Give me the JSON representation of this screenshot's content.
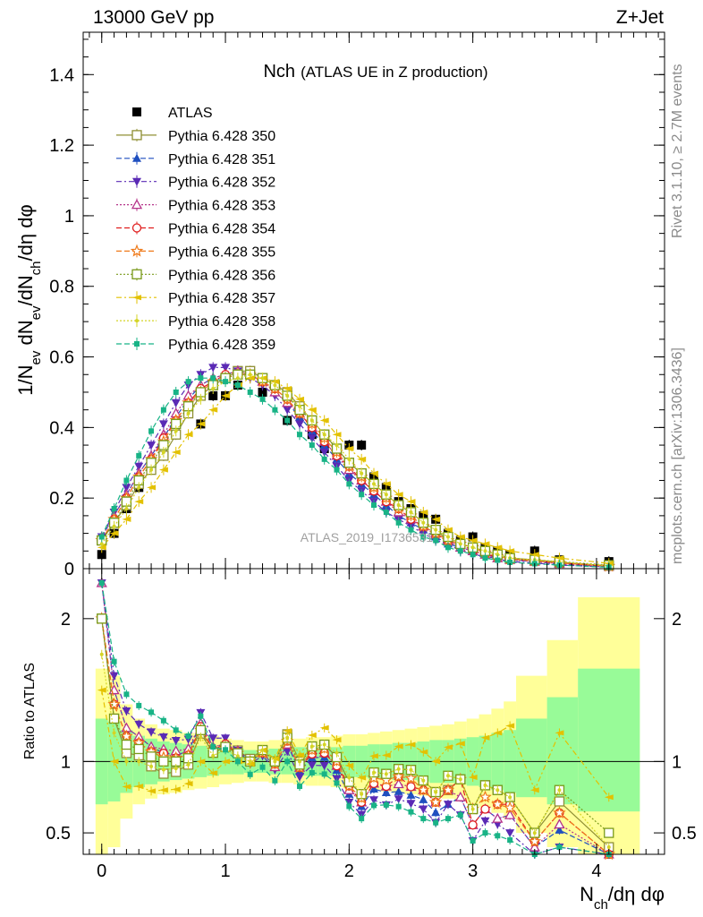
{
  "header": {
    "left": "13000 GeV pp",
    "right": "Z+Jet"
  },
  "side_notes": {
    "rivet": "Rivet 3.1.10, ≥ 2.7M events",
    "mcplots": "mcplots.cern.ch [arXiv:1306.3436]"
  },
  "watermark": "ATLAS_2019_I1736531",
  "colors": {
    "ratio_band_inner": "#98fb98",
    "ratio_band_outer": "#ffff99",
    "unity_line": "#000000"
  },
  "chart_data": [
    {
      "type": "scatter",
      "title": "Nch",
      "subtitle": "(ATLAS UE in Z production)",
      "xlabel": "N_ch/dη dφ",
      "ylabel": "1/N_ev dN_ev/dN_ch/dη dφ",
      "xlim": [
        -0.15,
        4.55
      ],
      "ylim": [
        0,
        1.52
      ],
      "x_ticks": [
        "0",
        "1",
        "2",
        "3",
        "4"
      ],
      "y_ticks": [
        "0",
        "0.2",
        "0.4",
        "0.6",
        "0.8",
        "1",
        "1.2",
        "1.4"
      ],
      "grid": false,
      "legend_position": "top-left",
      "x": [
        0.0,
        0.1,
        0.2,
        0.3,
        0.4,
        0.5,
        0.6,
        0.7,
        0.8,
        0.9,
        1.0,
        1.1,
        1.2,
        1.3,
        1.4,
        1.5,
        1.6,
        1.7,
        1.8,
        1.9,
        2.0,
        2.1,
        2.2,
        2.3,
        2.4,
        2.5,
        2.6,
        2.7,
        2.8,
        2.9,
        3.0,
        3.1,
        3.2,
        3.3,
        3.5,
        3.7,
        4.1
      ],
      "series": [
        {
          "name": "ATLAS",
          "color": "#000000",
          "marker": "filled-square",
          "dash": "none",
          "values": [
            0.04,
            0.1,
            0.17,
            0.23,
            0.29,
            0.35,
            0.41,
            0.45,
            0.41,
            0.49,
            0.49,
            0.52,
            0.55,
            0.5,
            0.52,
            0.42,
            0.46,
            0.38,
            0.34,
            0.33,
            0.35,
            0.35,
            0.26,
            0.23,
            0.19,
            0.17,
            0.15,
            0.14,
            0.1,
            0.08,
            0.09,
            0.06,
            0.05,
            0.04,
            0.05,
            0.025,
            0.02
          ]
        },
        {
          "name": "Pythia 6.428 350",
          "color": "#8f8f34",
          "marker": "open-square",
          "dash": "solid",
          "values": [
            0.08,
            0.13,
            0.18,
            0.24,
            0.28,
            0.32,
            0.38,
            0.44,
            0.49,
            0.52,
            0.54,
            0.56,
            0.56,
            0.54,
            0.52,
            0.5,
            0.46,
            0.42,
            0.38,
            0.34,
            0.3,
            0.27,
            0.24,
            0.21,
            0.18,
            0.16,
            0.13,
            0.11,
            0.08,
            0.07,
            0.06,
            0.05,
            0.04,
            0.03,
            0.025,
            0.018,
            0.008
          ]
        },
        {
          "name": "Pythia 6.428 351",
          "color": "#1f4fbf",
          "marker": "filled-triangle-up",
          "dash": "dashed",
          "values": [
            0.09,
            0.15,
            0.21,
            0.27,
            0.32,
            0.37,
            0.43,
            0.48,
            0.52,
            0.54,
            0.55,
            0.56,
            0.55,
            0.53,
            0.5,
            0.47,
            0.43,
            0.39,
            0.35,
            0.31,
            0.27,
            0.24,
            0.21,
            0.18,
            0.15,
            0.13,
            0.11,
            0.09,
            0.07,
            0.06,
            0.05,
            0.04,
            0.03,
            0.025,
            0.02,
            0.013,
            0.006
          ]
        },
        {
          "name": "Pythia 6.428 352",
          "color": "#5a2ab5",
          "marker": "filled-triangle-down",
          "dash": "dashdot",
          "values": [
            0.09,
            0.16,
            0.23,
            0.29,
            0.35,
            0.41,
            0.47,
            0.52,
            0.55,
            0.57,
            0.57,
            0.56,
            0.54,
            0.52,
            0.49,
            0.45,
            0.41,
            0.37,
            0.33,
            0.29,
            0.25,
            0.22,
            0.19,
            0.16,
            0.14,
            0.12,
            0.1,
            0.08,
            0.07,
            0.05,
            0.04,
            0.035,
            0.028,
            0.02,
            0.016,
            0.01,
            0.005
          ]
        },
        {
          "name": "Pythia 6.428 353",
          "color": "#b5338a",
          "marker": "open-triangle-up",
          "dash": "dotted",
          "values": [
            0.09,
            0.15,
            0.21,
            0.27,
            0.32,
            0.38,
            0.44,
            0.49,
            0.52,
            0.54,
            0.55,
            0.56,
            0.55,
            0.53,
            0.5,
            0.47,
            0.44,
            0.4,
            0.36,
            0.32,
            0.28,
            0.25,
            0.22,
            0.19,
            0.16,
            0.14,
            0.12,
            0.1,
            0.08,
            0.06,
            0.05,
            0.04,
            0.03,
            0.025,
            0.02,
            0.014,
            0.006
          ]
        },
        {
          "name": "Pythia 6.428 354",
          "color": "#e01e1e",
          "marker": "open-circle",
          "dash": "dashed",
          "values": [
            0.08,
            0.14,
            0.2,
            0.26,
            0.31,
            0.37,
            0.42,
            0.47,
            0.51,
            0.53,
            0.55,
            0.55,
            0.55,
            0.53,
            0.51,
            0.48,
            0.44,
            0.4,
            0.36,
            0.32,
            0.29,
            0.25,
            0.22,
            0.19,
            0.17,
            0.14,
            0.12,
            0.1,
            0.08,
            0.07,
            0.05,
            0.04,
            0.035,
            0.028,
            0.022,
            0.016,
            0.007
          ]
        },
        {
          "name": "Pythia 6.428 355",
          "color": "#ef7a1a",
          "marker": "open-star",
          "dash": "dashed",
          "values": [
            0.08,
            0.14,
            0.2,
            0.26,
            0.31,
            0.36,
            0.42,
            0.47,
            0.5,
            0.53,
            0.54,
            0.55,
            0.55,
            0.53,
            0.51,
            0.48,
            0.44,
            0.41,
            0.37,
            0.33,
            0.29,
            0.26,
            0.23,
            0.2,
            0.17,
            0.15,
            0.12,
            0.1,
            0.08,
            0.07,
            0.06,
            0.045,
            0.035,
            0.027,
            0.022,
            0.016,
            0.007
          ]
        },
        {
          "name": "Pythia 6.428 356",
          "color": "#7a9a1a",
          "marker": "open-square",
          "dash": "dotted",
          "values": [
            0.08,
            0.13,
            0.19,
            0.25,
            0.3,
            0.35,
            0.41,
            0.46,
            0.5,
            0.52,
            0.54,
            0.55,
            0.55,
            0.54,
            0.52,
            0.49,
            0.45,
            0.42,
            0.38,
            0.34,
            0.3,
            0.27,
            0.24,
            0.21,
            0.18,
            0.16,
            0.13,
            0.11,
            0.09,
            0.07,
            0.06,
            0.05,
            0.04,
            0.03,
            0.025,
            0.02,
            0.01
          ]
        },
        {
          "name": "Pythia 6.428 357",
          "color": "#e3c100",
          "marker": "filled-triangle-left",
          "dash": "dashdot",
          "values": [
            0.06,
            0.1,
            0.14,
            0.19,
            0.23,
            0.28,
            0.33,
            0.38,
            0.41,
            0.45,
            0.49,
            0.52,
            0.54,
            0.54,
            0.53,
            0.51,
            0.48,
            0.45,
            0.42,
            0.38,
            0.34,
            0.31,
            0.27,
            0.24,
            0.21,
            0.19,
            0.16,
            0.14,
            0.11,
            0.09,
            0.08,
            0.07,
            0.06,
            0.05,
            0.04,
            0.03,
            0.015
          ]
        },
        {
          "name": "Pythia 6.428 358",
          "color": "#d4d425",
          "marker": "dot",
          "dash": "dotted",
          "values": [
            0.07,
            0.12,
            0.17,
            0.23,
            0.28,
            0.33,
            0.39,
            0.44,
            0.48,
            0.51,
            0.53,
            0.54,
            0.55,
            0.54,
            0.52,
            0.49,
            0.46,
            0.42,
            0.38,
            0.35,
            0.31,
            0.27,
            0.24,
            0.21,
            0.18,
            0.16,
            0.13,
            0.11,
            0.09,
            0.07,
            0.06,
            0.05,
            0.04,
            0.03,
            0.025,
            0.02,
            0.008
          ]
        },
        {
          "name": "Pythia 6.428 359",
          "color": "#18b386",
          "marker": "filled-square-small",
          "dash": "dashed",
          "values": [
            0.09,
            0.17,
            0.25,
            0.32,
            0.39,
            0.45,
            0.5,
            0.53,
            0.54,
            0.54,
            0.53,
            0.52,
            0.5,
            0.48,
            0.45,
            0.42,
            0.38,
            0.35,
            0.31,
            0.28,
            0.24,
            0.21,
            0.18,
            0.16,
            0.13,
            0.11,
            0.09,
            0.08,
            0.06,
            0.05,
            0.04,
            0.03,
            0.024,
            0.018,
            0.014,
            0.01,
            0.004
          ]
        }
      ]
    },
    {
      "type": "scatter",
      "ylabel": "Ratio to ATLAS",
      "xlabel": "N_ch/dη dφ",
      "xlim": [
        -0.15,
        4.55
      ],
      "ylim": [
        0.35,
        2.35
      ],
      "y_ticks": [
        "0.5",
        "1",
        "2"
      ],
      "x_ticks": [
        "0",
        "1",
        "2",
        "3",
        "4"
      ],
      "reference_line": 1,
      "band_edges": [
        -0.05,
        0.05,
        0.15,
        0.25,
        0.35,
        0.45,
        0.55,
        0.65,
        0.75,
        0.85,
        0.95,
        1.05,
        1.15,
        1.25,
        1.35,
        1.45,
        1.55,
        1.65,
        1.75,
        1.85,
        1.95,
        2.05,
        2.15,
        2.25,
        2.35,
        2.45,
        2.55,
        2.65,
        2.75,
        2.85,
        2.95,
        3.05,
        3.15,
        3.25,
        3.35,
        3.6,
        3.85,
        4.35
      ],
      "band_inner_low": [
        0.7,
        0.72,
        0.78,
        0.82,
        0.84,
        0.86,
        0.87,
        0.88,
        0.89,
        0.9,
        0.91,
        0.91,
        0.92,
        0.92,
        0.91,
        0.91,
        0.9,
        0.9,
        0.9,
        0.9,
        0.89,
        0.89,
        0.88,
        0.88,
        0.87,
        0.87,
        0.86,
        0.85,
        0.85,
        0.84,
        0.83,
        0.82,
        0.8,
        0.78,
        0.75,
        0.7,
        0.65
      ],
      "band_inner_high": [
        1.3,
        1.28,
        1.22,
        1.18,
        1.16,
        1.14,
        1.13,
        1.12,
        1.11,
        1.1,
        1.09,
        1.09,
        1.08,
        1.08,
        1.09,
        1.09,
        1.1,
        1.1,
        1.1,
        1.1,
        1.11,
        1.11,
        1.12,
        1.12,
        1.13,
        1.13,
        1.14,
        1.15,
        1.15,
        1.16,
        1.17,
        1.18,
        1.2,
        1.22,
        1.3,
        1.45,
        1.65
      ],
      "band_outer_low": [
        0.35,
        0.4,
        0.6,
        0.7,
        0.74,
        0.77,
        0.78,
        0.8,
        0.81,
        0.82,
        0.84,
        0.85,
        0.86,
        0.86,
        0.85,
        0.85,
        0.84,
        0.83,
        0.83,
        0.82,
        0.81,
        0.81,
        0.8,
        0.79,
        0.78,
        0.77,
        0.76,
        0.75,
        0.74,
        0.72,
        0.7,
        0.68,
        0.64,
        0.6,
        0.5,
        0.4,
        0.35
      ],
      "band_outer_high": [
        1.65,
        1.6,
        1.4,
        1.3,
        1.26,
        1.23,
        1.22,
        1.2,
        1.19,
        1.18,
        1.16,
        1.15,
        1.14,
        1.14,
        1.15,
        1.15,
        1.16,
        1.17,
        1.17,
        1.18,
        1.19,
        1.19,
        1.2,
        1.21,
        1.22,
        1.23,
        1.24,
        1.25,
        1.26,
        1.28,
        1.3,
        1.33,
        1.37,
        1.42,
        1.6,
        1.85,
        2.15
      ]
    }
  ]
}
